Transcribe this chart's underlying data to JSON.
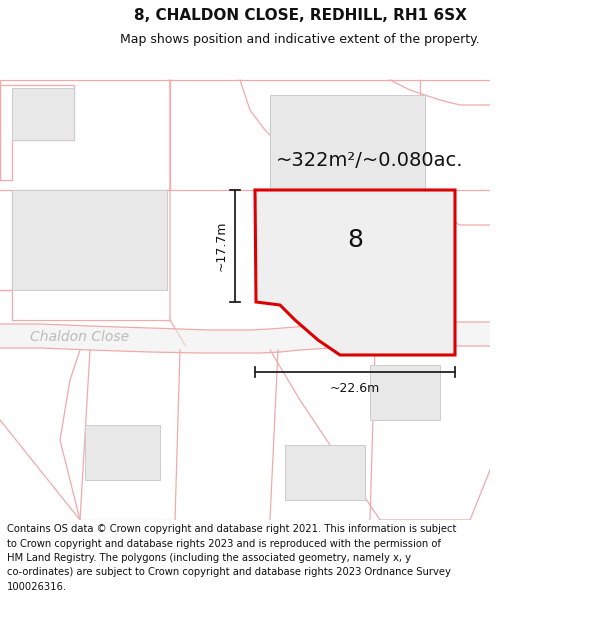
{
  "title": "8, CHALDON CLOSE, REDHILL, RH1 6SX",
  "subtitle": "Map shows position and indicative extent of the property.",
  "footer_text": "Contains OS data © Crown copyright and database right 2021. This information is subject\nto Crown copyright and database rights 2023 and is reproduced with the permission of\nHM Land Registry. The polygons (including the associated geometry, namely x, y\nco-ordinates) are subject to Crown copyright and database rights 2023 Ordnance Survey\n100026316.",
  "area_text": "~322m²/~0.080ac.",
  "label_8": "8",
  "dim_vertical": "~17.7m",
  "dim_horizontal": "~22.6m",
  "street_label": "Chaldon Close",
  "map_bg": "#ffffff",
  "right_panel_bg": "#d8e8d8",
  "plot_color": "#dd0000",
  "plot_fill": "#efefef",
  "road_line_color": "#f0aaaa",
  "building_fill": "#e8e8e8",
  "building_edge": "#cccccc",
  "dim_line_color": "#222222",
  "title_fontsize": 11,
  "subtitle_fontsize": 9,
  "footer_fontsize": 7.2,
  "area_fontsize": 14,
  "label_fontsize": 18,
  "dim_fontsize": 9,
  "street_fontsize": 10
}
